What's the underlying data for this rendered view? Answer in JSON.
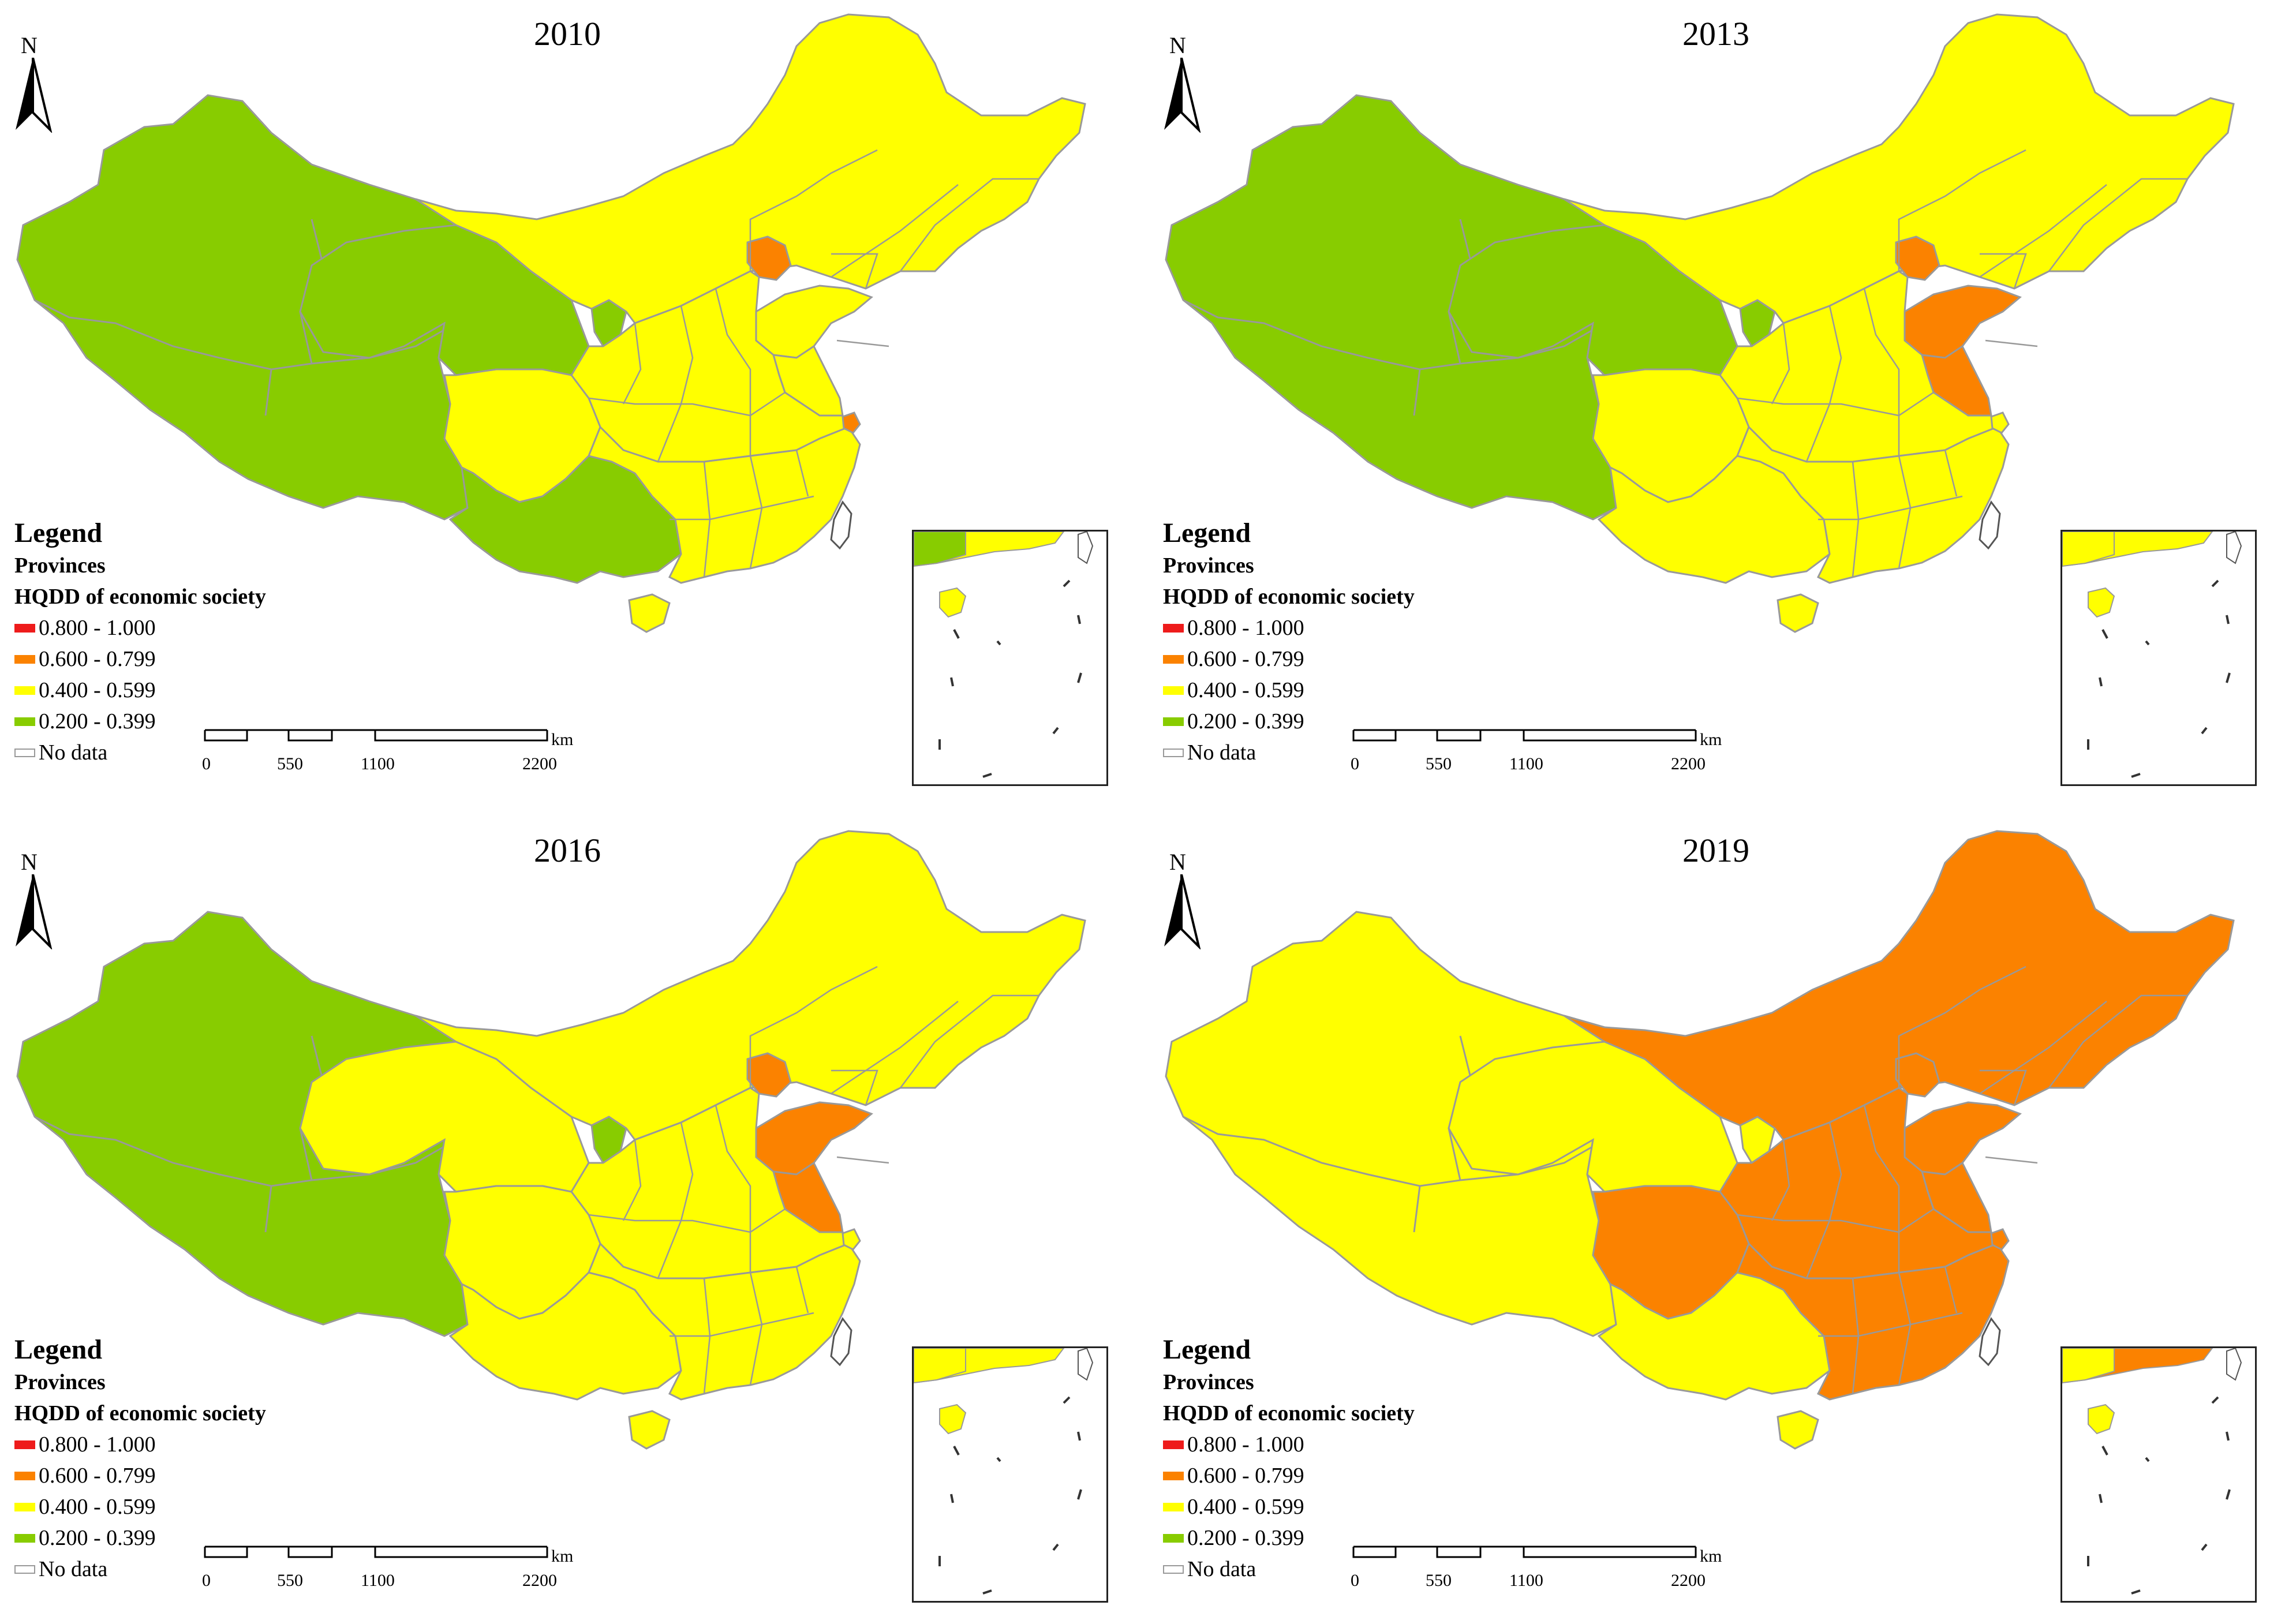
{
  "colors": {
    "class_0800_1000": "#ee1b1b",
    "class_0600_0799": "#fb8200",
    "class_0400_0599": "#ffff00",
    "class_0200_0399": "#88cc00",
    "no_data": "#ffffff",
    "boundary": "#999999"
  },
  "panels": [
    {
      "year": "2010",
      "regions": {
        "west": "class_0200_0399",
        "qinghai": "class_0200_0399",
        "southwest": "class_0200_0399",
        "ningxia": "class_0200_0399",
        "beijing": "class_0600_0799",
        "shanghai": "class_0600_0799",
        "shandong": "class_0400_0599",
        "jiangsu": "class_0400_0599",
        "northeast": "class_0400_0599",
        "central": "class_0400_0599",
        "southeast": "class_0400_0599",
        "sichuan": "class_0400_0599",
        "hainan": "class_0400_0599"
      }
    },
    {
      "year": "2013",
      "regions": {
        "west": "class_0200_0399",
        "qinghai": "class_0200_0399",
        "southwest": "class_0400_0599",
        "ningxia": "class_0200_0399",
        "beijing": "class_0600_0799",
        "shanghai": "class_0400_0599",
        "shandong": "class_0600_0799",
        "jiangsu": "class_0600_0799",
        "northeast": "class_0400_0599",
        "central": "class_0400_0599",
        "southeast": "class_0400_0599",
        "sichuan": "class_0400_0599",
        "hainan": "class_0400_0599"
      }
    },
    {
      "year": "2016",
      "regions": {
        "west": "class_0200_0399",
        "qinghai": "class_0400_0599",
        "southwest": "class_0400_0599",
        "ningxia": "class_0200_0399",
        "beijing": "class_0600_0799",
        "shanghai": "class_0400_0599",
        "shandong": "class_0600_0799",
        "jiangsu": "class_0600_0799",
        "northeast": "class_0400_0599",
        "central": "class_0400_0599",
        "southeast": "class_0400_0599",
        "sichuan": "class_0400_0599",
        "hainan": "class_0400_0599"
      }
    },
    {
      "year": "2019",
      "regions": {
        "west": "class_0400_0599",
        "qinghai": "class_0400_0599",
        "southwest": "class_0400_0599",
        "ningxia": "class_0400_0599",
        "beijing": "class_0600_0799",
        "shanghai": "class_0600_0799",
        "shandong": "class_0600_0799",
        "jiangsu": "class_0600_0799",
        "northeast": "class_0600_0799",
        "central": "class_0600_0799",
        "southeast": "class_0600_0799",
        "sichuan": "class_0600_0799",
        "hainan": "class_0400_0599"
      }
    }
  ],
  "legend": {
    "title": "Legend",
    "layer": "Provinces",
    "field": "HQDD of economic society",
    "classes": [
      {
        "label": "0.800 - 1.000",
        "color": "#ee1b1b"
      },
      {
        "label": "0.600 - 0.799",
        "color": "#fb8200"
      },
      {
        "label": "0.400 - 0.599",
        "color": "#ffff00"
      },
      {
        "label": "0.200 - 0.399",
        "color": "#88cc00"
      },
      {
        "label": "No data",
        "color": "#ffffff"
      }
    ]
  },
  "north_label": "N",
  "scale": {
    "unit": "km",
    "ticks": [
      "0",
      "550",
      "1100",
      "2200"
    ]
  }
}
